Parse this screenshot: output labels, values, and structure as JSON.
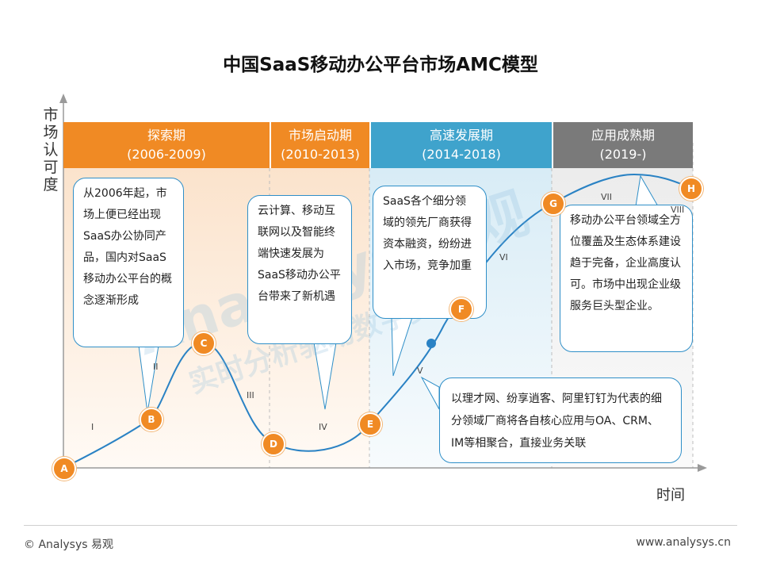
{
  "title": "中国SaaS移动办公平台市场AMC模型",
  "ylabel": "市场认可度",
  "xlabel": "时间",
  "stages": [
    {
      "name": "探索期",
      "period": "(2006-2009)",
      "color": "#f08a24"
    },
    {
      "name": "市场启动期",
      "period": "(2010-2013)",
      "color": "#f08a24"
    },
    {
      "name": "高速发展期",
      "period": "(2014-2018)",
      "color": "#3fa3cc"
    },
    {
      "name": "应用成熟期",
      "period": "(2019-)",
      "color": "#7a7a7a"
    }
  ],
  "notes": {
    "n1": "从2006年起，市场上便已经出现SaaS办公协同产品，国内对SaaS移动办公平台的概念逐渐形成",
    "n2": "云计算、移动互联网以及智能终端快速发展为SaaS移动办公平台带来了新机遇",
    "n3": "SaaS各个细分领域的领先厂商获得资本融资，纷纷进入市场，竞争加重",
    "n4": "移动办公平台领域全方位覆盖及生态体系建设趋于完备，企业高度认可。市场中出现企业级服务巨头型企业。",
    "n5": "以理才网、纷享逍客、阿里钉钉为代表的细分领域厂商将各自核心应用与OA、CRM、IM等相聚合，直接业务关联"
  },
  "points": [
    "A",
    "B",
    "C",
    "D",
    "E",
    "F",
    "G",
    "H"
  ],
  "phases": [
    "I",
    "II",
    "III",
    "IV",
    "V",
    "VI",
    "VII",
    "VIII"
  ],
  "watermark": "Analysys 易观",
  "watermark_sub": "实时分析驱动数字资产",
  "footer": {
    "left": "© Analysys 易观",
    "right": "www.analysys.cn"
  }
}
